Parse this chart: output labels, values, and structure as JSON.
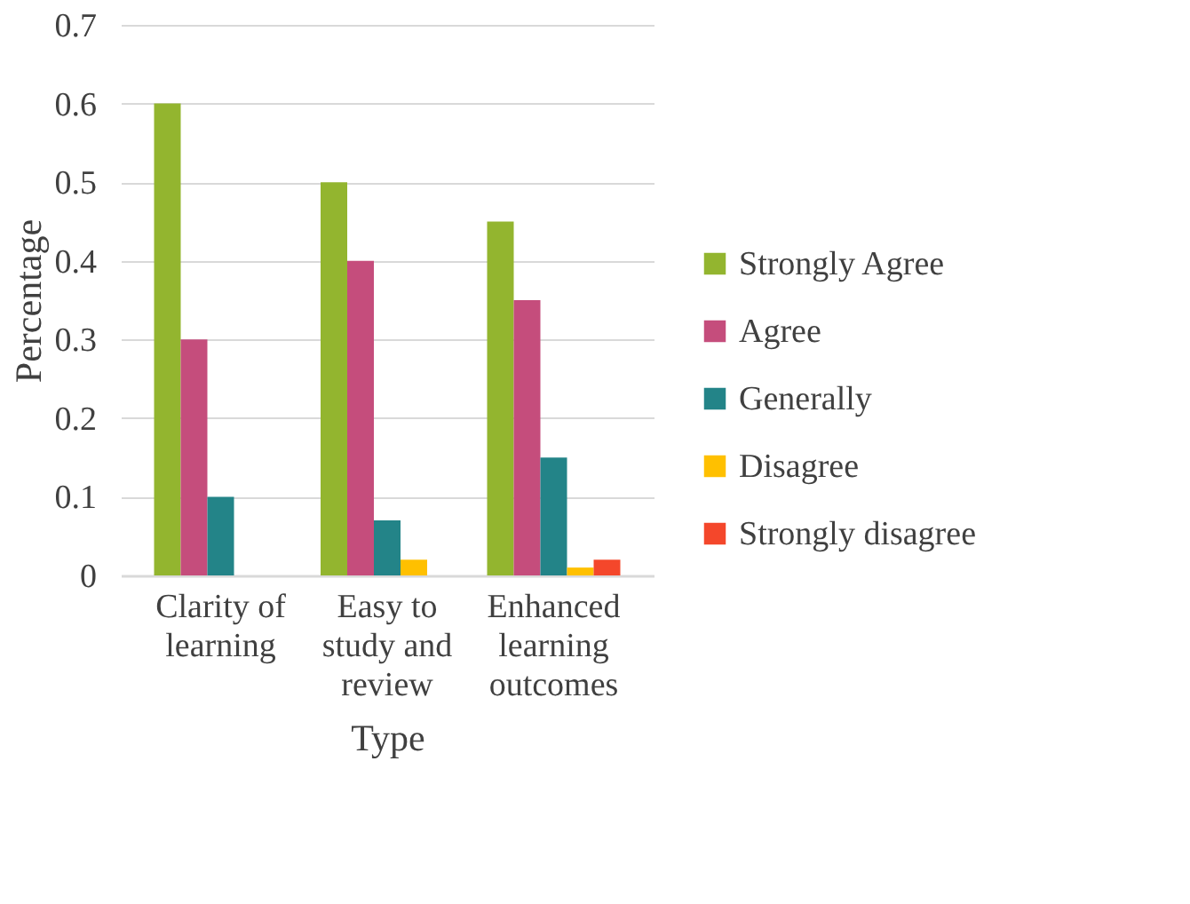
{
  "chart_data": {
    "type": "bar",
    "xlabel": "Type",
    "ylabel": "Percentage",
    "categories": [
      "Clarity of learning",
      "Easy to study and review",
      "Enhanced learning outcomes"
    ],
    "series": [
      {
        "name": "Strongly Agree",
        "color": "#93b52f",
        "values": [
          0.6,
          0.5,
          0.45
        ]
      },
      {
        "name": "Agree",
        "color": "#c54d7c",
        "values": [
          0.3,
          0.4,
          0.35
        ]
      },
      {
        "name": "Generally",
        "color": "#238488",
        "values": [
          0.1,
          0.07,
          0.15
        ]
      },
      {
        "name": "Disagree",
        "color": "#ffc000",
        "values": [
          0,
          0.02,
          0.01
        ]
      },
      {
        "name": "Strongly disagree",
        "color": "#f4472b",
        "values": [
          0,
          0,
          0.02
        ]
      }
    ],
    "ylim": [
      0,
      0.7
    ],
    "yticks": [
      0,
      0.1,
      0.2,
      0.3,
      0.4,
      0.5,
      0.6,
      0.7
    ],
    "grid": "y",
    "legend": "right"
  }
}
